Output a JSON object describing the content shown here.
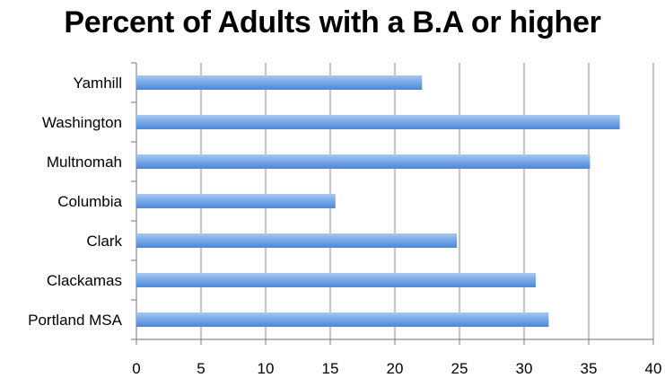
{
  "chart_data": {
    "type": "bar",
    "orientation": "horizontal",
    "title": "Percent of Adults with a B.A or higher",
    "xlabel": "",
    "ylabel": "",
    "categories": [
      "Portland MSA",
      "Clackamas",
      "Clark",
      "Columbia",
      "Multnomah",
      "Washington",
      "Yamhill"
    ],
    "values": [
      31.9,
      30.9,
      24.8,
      15.4,
      35.1,
      37.4,
      22.1
    ],
    "xlim": [
      0,
      40
    ],
    "xticks": [
      0,
      5,
      10,
      15,
      20,
      25,
      30,
      35,
      40
    ],
    "grid": true,
    "legend": "none",
    "colors": {
      "bar_light": "#a9c8f0",
      "bar_mid": "#7aa9e6",
      "bar_dark": "#4f86d6",
      "grid": "#8a8a8a",
      "axis": "#8a8a8a"
    }
  }
}
